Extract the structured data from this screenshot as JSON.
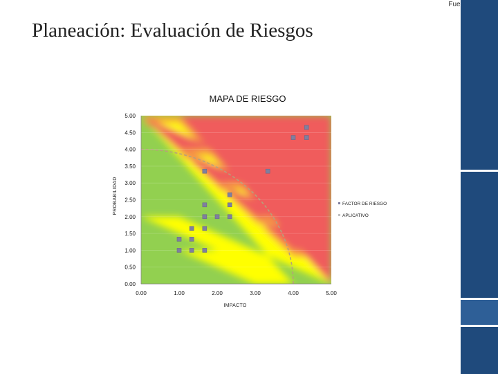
{
  "page": {
    "title": "Planeación: Evaluación de Riesgos",
    "source_note": "Fuente: Propia"
  },
  "colors": {
    "red": "#f05b5b",
    "orange": "#f7a335",
    "yellow": "#ffff00",
    "green": "#92d050",
    "marker": "#7f7f9f",
    "curve": "#b7a07a",
    "sidebar": "#1f4a7c"
  },
  "chart_data": {
    "type": "scatter",
    "title": "MAPA DE RIESGO",
    "xlabel": "IMPACTO",
    "ylabel": "PROBABILIDAD",
    "xlim": [
      0,
      5
    ],
    "ylim": [
      0,
      5
    ],
    "x_ticks": [
      "0.00",
      "1.00",
      "2.00",
      "3.00",
      "4.00",
      "5.00"
    ],
    "y_ticks": [
      "0.00",
      "0.50",
      "1.00",
      "1.50",
      "2.00",
      "2.50",
      "3.00",
      "3.50",
      "4.00",
      "4.50",
      "5.00"
    ],
    "series": [
      {
        "name": "FACTOR DE RIESGO",
        "points": [
          {
            "x": 4.35,
            "y": 4.65
          },
          {
            "x": 4.0,
            "y": 4.35
          },
          {
            "x": 4.35,
            "y": 4.35
          },
          {
            "x": 1.67,
            "y": 3.35
          },
          {
            "x": 3.33,
            "y": 3.35
          },
          {
            "x": 2.33,
            "y": 2.65
          },
          {
            "x": 1.67,
            "y": 2.35
          },
          {
            "x": 2.33,
            "y": 2.35
          },
          {
            "x": 1.67,
            "y": 2.0
          },
          {
            "x": 2.0,
            "y": 2.0
          },
          {
            "x": 2.33,
            "y": 2.0
          },
          {
            "x": 1.33,
            "y": 1.65
          },
          {
            "x": 1.67,
            "y": 1.65
          },
          {
            "x": 1.0,
            "y": 1.33
          },
          {
            "x": 1.33,
            "y": 1.33
          },
          {
            "x": 1.0,
            "y": 1.0
          },
          {
            "x": 1.33,
            "y": 1.0
          },
          {
            "x": 1.67,
            "y": 1.0
          }
        ]
      },
      {
        "name": "APLICATIVO",
        "points": []
      }
    ],
    "zones": [
      "green",
      "yellow",
      "orange",
      "red"
    ],
    "reference_curve": "quarter-circle, radius 4 centered at origin, dashed"
  }
}
